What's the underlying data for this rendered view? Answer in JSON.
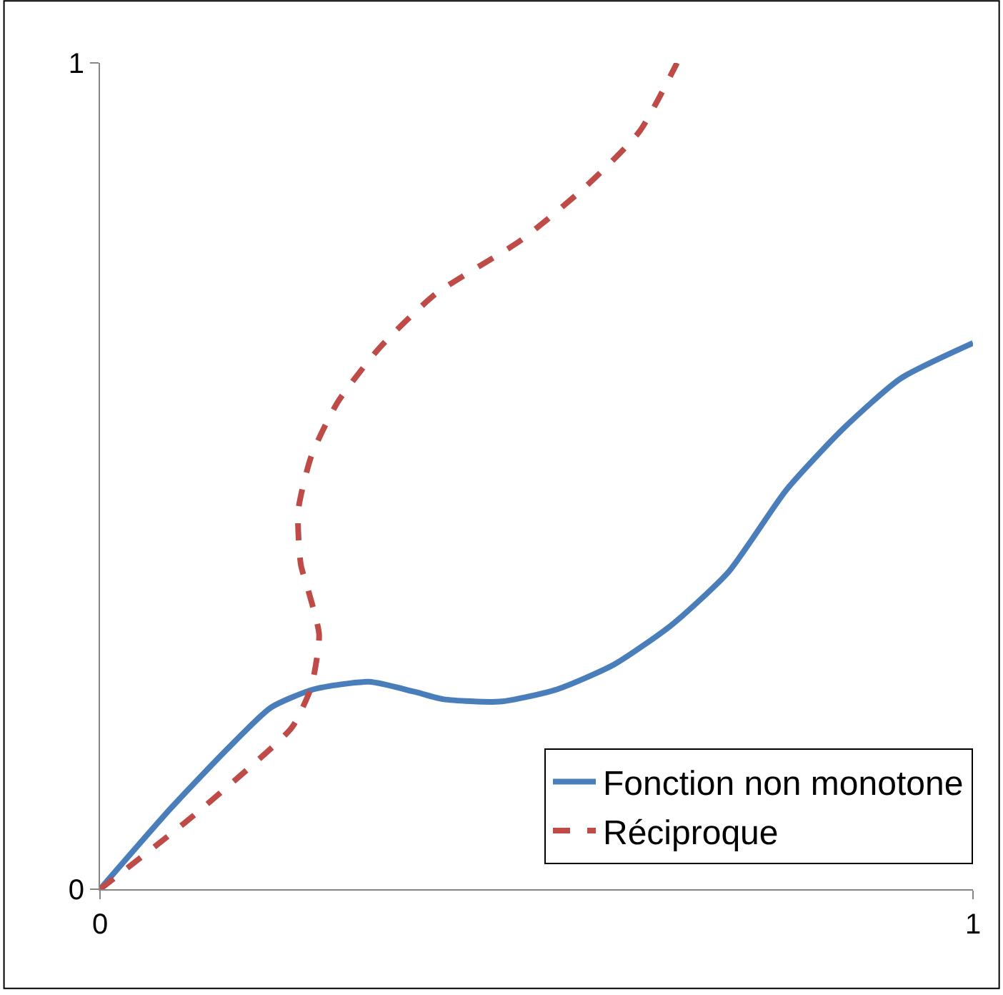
{
  "chart_data": {
    "type": "line",
    "xlim": [
      0,
      1
    ],
    "ylim": [
      0,
      1
    ],
    "xticks": [
      0,
      1
    ],
    "yticks": [
      0,
      1
    ],
    "legend": "bottom right",
    "series": [
      {
        "name": "Fonction non monotone",
        "color": "#4a7ebb",
        "line_style": "solid",
        "x": [
          0,
          0.082,
          0.147,
          0.196,
          0.245,
          0.308,
          0.36,
          0.393,
          0.458,
          0.524,
          0.589,
          0.655,
          0.72,
          0.786,
          0.851,
          0.917,
          1
        ],
        "values": [
          0,
          0.099,
          0.171,
          0.22,
          0.242,
          0.251,
          0.239,
          0.23,
          0.227,
          0.242,
          0.272,
          0.32,
          0.384,
          0.483,
          0.557,
          0.618,
          0.661
        ]
      },
      {
        "name": "Réciproque",
        "color": "#be4b48",
        "line_style": "dashed",
        "x": [
          0,
          0.099,
          0.171,
          0.22,
          0.242,
          0.251,
          0.239,
          0.23,
          0.227,
          0.242,
          0.272,
          0.32,
          0.384,
          0.483,
          0.557,
          0.618,
          0.661
        ],
        "values": [
          0,
          0.082,
          0.147,
          0.196,
          0.245,
          0.308,
          0.36,
          0.393,
          0.458,
          0.524,
          0.589,
          0.655,
          0.72,
          0.786,
          0.851,
          0.917,
          1
        ]
      }
    ]
  }
}
